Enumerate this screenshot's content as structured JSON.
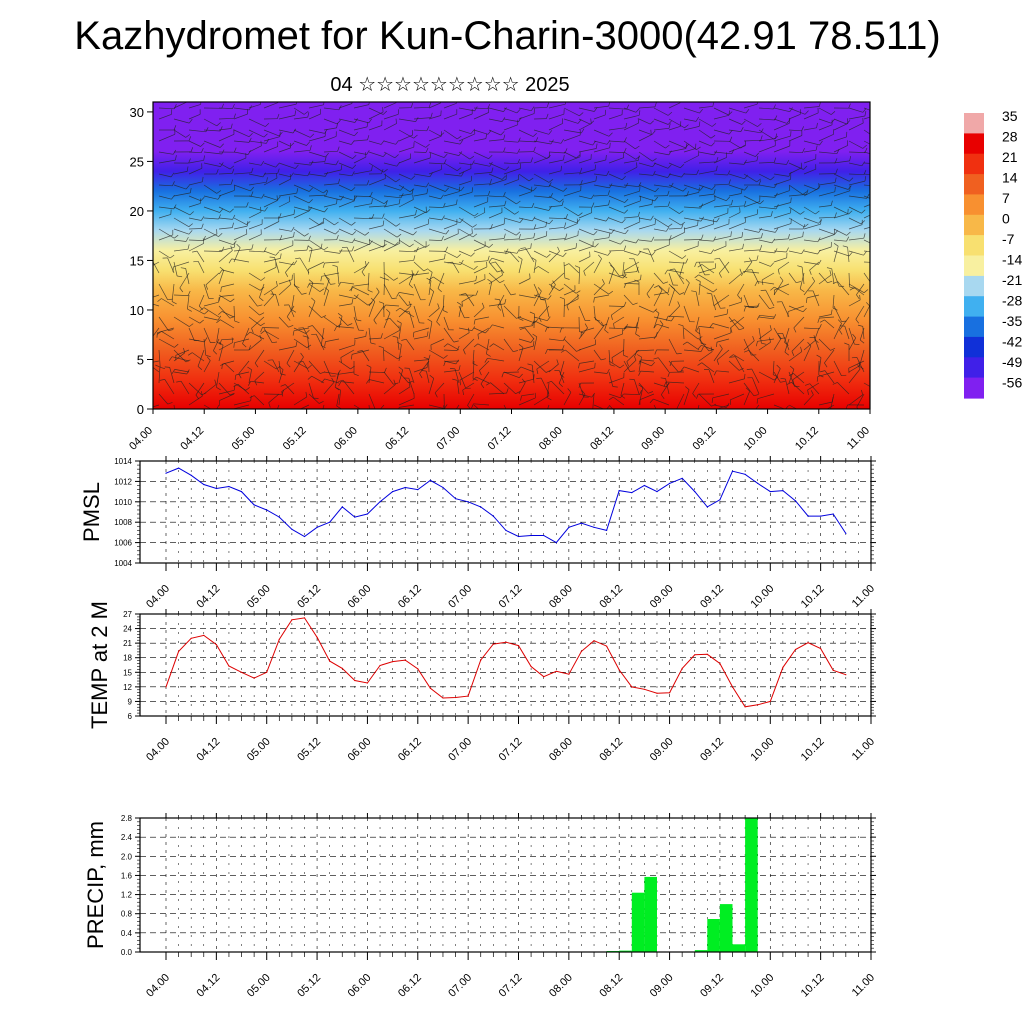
{
  "header": {
    "title": "Kazhydromet for Kun-Charin-3000(42.91 78.511)",
    "subtitle": "04 ☆☆☆☆☆☆☆☆☆ 2025"
  },
  "colors": {
    "pmsl_line": "#0000dd",
    "temp_line": "#dd0000",
    "precip_bar": "#00ee22",
    "frame": "#000000"
  },
  "chart_data": [
    {
      "id": "cross_section",
      "type": "heatmap",
      "title": "",
      "xlabel": "",
      "ylabel": "",
      "x_tick_labels": [
        "04.00",
        "04.12",
        "05.00",
        "05.12",
        "06.00",
        "06.12",
        "07.00",
        "07.12",
        "08.00",
        "08.12",
        "09.00",
        "09.12",
        "10.00",
        "10.12",
        "11.00"
      ],
      "ylim": [
        0,
        31
      ],
      "y_ticks": [
        0,
        5,
        10,
        15,
        20,
        25,
        30
      ],
      "y_tick_labels": [
        "0",
        "5",
        "10",
        "15",
        "20",
        "25",
        "30"
      ],
      "colorbar_labels": [
        "35",
        "28",
        "21",
        "14",
        "7",
        "0",
        "-7",
        "-14",
        "-21",
        "-28",
        "-35",
        "-42",
        "-49",
        "-56"
      ],
      "colorbar_colors": [
        "#f0a8a8",
        "#e80000",
        "#f03010",
        "#f06020",
        "#f89030",
        "#f8b848",
        "#f8e070",
        "#f8f0a0",
        "#a8d8f0",
        "#40b0f0",
        "#1870e0",
        "#1030d8",
        "#4020e8",
        "#8020f0"
      ],
      "overlay": "wind barbs",
      "temperature_profile": {
        "heights": [
          0,
          3,
          6,
          9,
          12,
          14,
          16,
          18,
          20,
          22,
          24,
          26,
          28,
          31
        ],
        "values": [
          28,
          21,
          14,
          7,
          0,
          -5,
          -12,
          -22,
          -30,
          -38,
          -47,
          -54,
          -56,
          -56
        ]
      }
    },
    {
      "id": "pmsl",
      "type": "line",
      "title": "",
      "xlabel": "",
      "ylabel": "PMSL",
      "ylim": [
        1004,
        1014
      ],
      "y_ticks": [
        1004,
        1006,
        1008,
        1010,
        1012,
        1014
      ],
      "y_tick_labels": [
        "1004",
        "1006",
        "1008",
        "1010",
        "1012",
        "1014"
      ],
      "x_tick_labels": [
        "04.00",
        "04.12",
        "05.00",
        "05.12",
        "06.00",
        "06.12",
        "07.00",
        "07.12",
        "08.00",
        "08.12",
        "09.00",
        "09.12",
        "10.00",
        "10.12",
        "11.00"
      ],
      "x_hours": [
        0,
        3,
        6,
        9,
        12,
        15,
        18,
        21,
        24,
        27,
        30,
        33,
        36,
        39,
        42,
        45,
        48,
        51,
        54,
        57,
        60,
        63,
        66,
        69,
        72,
        75,
        78,
        81,
        84,
        87,
        90,
        93,
        96,
        99,
        102,
        105,
        108,
        111,
        114,
        117,
        120,
        123,
        126,
        129,
        132,
        135,
        138,
        141,
        144,
        147,
        150,
        153,
        156,
        159,
        162
      ],
      "series": [
        {
          "name": "",
          "values": [
            1012.8,
            1013.3,
            1012.6,
            1011.7,
            1011.3,
            1011.5,
            1011.0,
            1009.7,
            1009.2,
            1008.5,
            1007.3,
            1006.6,
            1007.5,
            1008.0,
            1009.5,
            1008.5,
            1008.8,
            1010.0,
            1011.0,
            1011.4,
            1011.2,
            1012.1,
            1011.4,
            1010.3,
            1010.0,
            1009.5,
            1008.6,
            1007.2,
            1006.6,
            1006.7,
            1006.7,
            1006.0,
            1007.5,
            1007.9,
            1007.5,
            1007.2,
            1011.1,
            1010.9,
            1011.6,
            1011.0,
            1011.8,
            1012.3,
            1011.0,
            1009.5,
            1010.2,
            1013.0,
            1012.7,
            1011.8,
            1011.0,
            1011.1,
            1010.1,
            1008.6,
            1008.6,
            1008.8,
            1006.9
          ]
        }
      ]
    },
    {
      "id": "temp2m",
      "type": "line",
      "title": "",
      "xlabel": "",
      "ylabel": "TEMP at 2 M",
      "ylim": [
        6,
        27
      ],
      "y_ticks": [
        6,
        9,
        12,
        15,
        18,
        21,
        24,
        27
      ],
      "y_tick_labels": [
        "6",
        "9",
        "12",
        "15",
        "18",
        "21",
        "24",
        "27"
      ],
      "x_tick_labels": [
        "04.00",
        "04.12",
        "05.00",
        "05.12",
        "06.00",
        "06.12",
        "07.00",
        "07.12",
        "08.00",
        "08.12",
        "09.00",
        "09.12",
        "10.00",
        "10.12",
        "11.00"
      ],
      "x_hours": [
        0,
        3,
        6,
        9,
        12,
        15,
        18,
        21,
        24,
        27,
        30,
        33,
        36,
        39,
        42,
        45,
        48,
        51,
        54,
        57,
        60,
        63,
        66,
        69,
        72,
        75,
        78,
        81,
        84,
        87,
        90,
        93,
        96,
        99,
        102,
        105,
        108,
        111,
        114,
        117,
        120,
        123,
        126,
        129,
        132,
        135,
        138,
        141,
        144,
        147,
        150,
        153,
        156,
        159,
        162
      ],
      "series": [
        {
          "name": "",
          "values": [
            12.0,
            19.3,
            22.0,
            22.6,
            20.7,
            16.3,
            15.0,
            13.8,
            15.0,
            21.8,
            25.8,
            26.2,
            22.2,
            17.3,
            15.8,
            13.3,
            12.8,
            16.4,
            17.2,
            17.5,
            15.7,
            11.7,
            9.7,
            9.8,
            10.1,
            17.5,
            20.8,
            21.2,
            20.5,
            16.2,
            14.1,
            15.2,
            14.6,
            19.3,
            21.5,
            20.4,
            15.5,
            12.0,
            11.5,
            10.7,
            10.8,
            15.8,
            18.6,
            18.7,
            16.8,
            12.0,
            7.9,
            8.3,
            9.0,
            16.0,
            19.7,
            21.1,
            19.9,
            15.4,
            14.5
          ]
        }
      ]
    },
    {
      "id": "precip",
      "type": "bar",
      "title": "",
      "xlabel": "",
      "ylabel": "PRECIP, mm",
      "ylim": [
        0,
        2.8
      ],
      "y_ticks": [
        0,
        0.4,
        0.8,
        1.2,
        1.6,
        2.0,
        2.4,
        2.8
      ],
      "y_tick_labels": [
        "0.0",
        "0.4",
        "0.8",
        "1.2",
        "1.6",
        "2.0",
        "2.4",
        "2.8"
      ],
      "x_tick_labels": [
        "04.00",
        "04.12",
        "05.00",
        "05.12",
        "06.00",
        "06.12",
        "07.00",
        "07.12",
        "08.00",
        "08.12",
        "09.00",
        "09.12",
        "10.00",
        "10.12",
        "11.00"
      ],
      "bar_start_hours": [
        105,
        108,
        111,
        114,
        126,
        129,
        132,
        135,
        138
      ],
      "values": [
        0.02,
        0.03,
        1.24,
        1.57,
        0.04,
        0.69,
        1.0,
        0.16,
        2.8
      ]
    }
  ]
}
